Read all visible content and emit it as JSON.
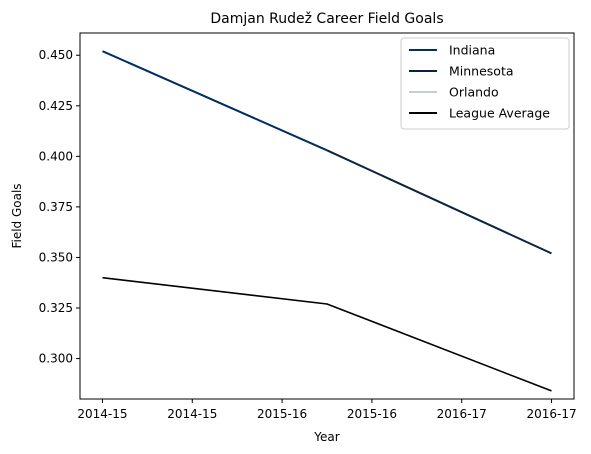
{
  "chart_data": {
    "type": "line",
    "title": "Damjan Rudež Career Field Goals",
    "xlabel": "Year",
    "ylabel": "Field Goals",
    "x_tick_labels": [
      "2014-15",
      "2014-15",
      "2015-16",
      "2015-16",
      "2016-17",
      "2016-17"
    ],
    "xlim": [
      -0.1,
      2.1
    ],
    "ylim": [
      0.28,
      0.461
    ],
    "y_ticks": [
      0.3,
      0.325,
      0.35,
      0.375,
      0.4,
      0.425,
      0.45
    ],
    "y_tick_labels": [
      "0.300",
      "0.325",
      "0.350",
      "0.375",
      "0.400",
      "0.425",
      "0.450"
    ],
    "grid": false,
    "legend_position": "top-right",
    "series": [
      {
        "name": "Indiana",
        "color": "#002d62",
        "x": [
          0,
          1
        ],
        "y": [
          0.452,
          0.403
        ]
      },
      {
        "name": "Minnesota",
        "color": "#0c2340",
        "x": [
          1,
          2
        ],
        "y": [
          0.403,
          0.352
        ]
      },
      {
        "name": "Orlando",
        "color": "#c4ced4",
        "x": [],
        "y": []
      },
      {
        "name": "League Average",
        "color": "#000000",
        "x": [
          0,
          1,
          2
        ],
        "y": [
          0.34,
          0.327,
          0.284
        ]
      }
    ]
  }
}
